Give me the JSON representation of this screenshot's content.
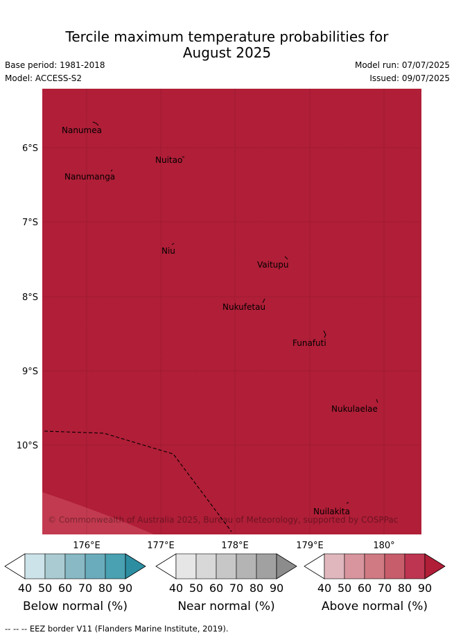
{
  "header": {
    "title_line1": "Tercile maximum temperature probabilities for",
    "title_line2": "August 2025",
    "base_period": "Base period: 1981-2018",
    "model": "Model: ACCESS-S2",
    "model_run": "Model run: 07/07/2025",
    "issued": "Issued: 09/07/2025"
  },
  "map": {
    "fill_color": "#b01e37",
    "corner_color": "#c23a4f",
    "lat_labels": [
      "6°S",
      "7°S",
      "8°S",
      "9°S",
      "10°S"
    ],
    "lon_labels": [
      "176°E",
      "177°E",
      "178°E",
      "179°E",
      "180°"
    ],
    "places": [
      "Nanumea",
      "Nuitao",
      "Nanumanga",
      "Niu",
      "Vaitupu",
      "Nukufetau",
      "Funafuti",
      "Nukulaelae",
      "Nuilakita"
    ],
    "copyright": "© Commonwealth of Australia 2025, Bureau of Meteorology, supported by COSPPac"
  },
  "colorbars": [
    {
      "label": "Below normal (%)",
      "ticks": [
        "40",
        "50",
        "60",
        "70",
        "80",
        "90"
      ],
      "colors": [
        "#cce3e9",
        "#a9cbd1",
        "#88b9c5",
        "#6aacbc",
        "#49a1b2",
        "#2d8ea2"
      ]
    },
    {
      "label": "Near normal (%)",
      "ticks": [
        "40",
        "50",
        "60",
        "70",
        "80",
        "90"
      ],
      "colors": [
        "#e6e6e6",
        "#d8d8d8",
        "#c7c7c7",
        "#b4b4b4",
        "#a1a1a1",
        "#8c8c8c"
      ]
    },
    {
      "label": "Above normal (%)",
      "ticks": [
        "40",
        "50",
        "60",
        "70",
        "80",
        "90"
      ],
      "colors": [
        "#e0b7bd",
        "#d8959d",
        "#d07a84",
        "#c75d6b",
        "#bd3550",
        "#b01e37"
      ]
    }
  ],
  "footnote": "--  --  -- EEZ border V11 (Flanders Marine Institute, 2019)."
}
